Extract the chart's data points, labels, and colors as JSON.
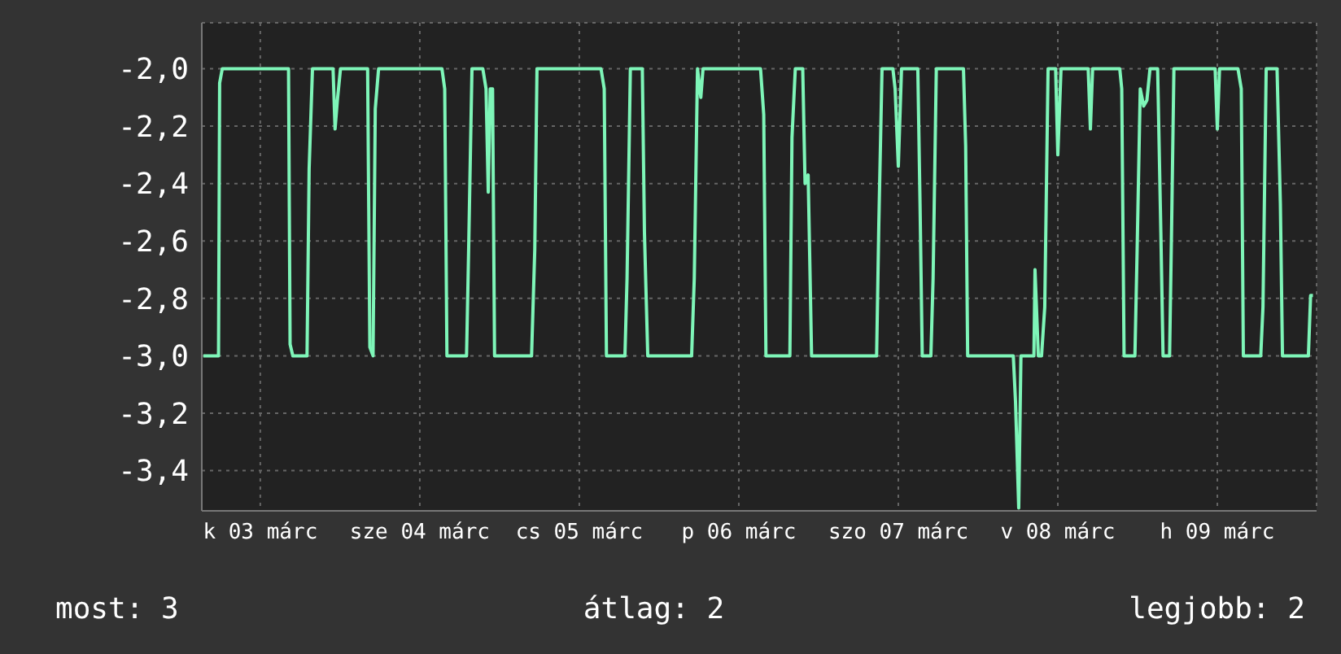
{
  "chart_data": {
    "type": "line",
    "x": [
      "--03-03T03:26",
      "--03-03T05:43",
      "--03-03T05:53",
      "--03-03T06:17",
      "--03-03T16:15",
      "--03-03T16:29",
      "--03-03T16:54",
      "--03-03T19:02",
      "--03-03T19:21",
      "--03-03T19:51",
      "--03-03T22:57",
      "--03-03T23:15",
      "--03-03T23:36",
      "--03-04T00:04",
      "--03-04T04:09",
      "--03-04T04:29",
      "--03-04T04:58",
      "--03-04T05:18",
      "--03-04T05:48",
      "--03-04T15:20",
      "--03-04T15:45",
      "--03-04T16:05",
      "--03-04T19:02",
      "--03-04T19:21",
      "--03-04T19:51",
      "--03-04T21:29",
      "--03-04T21:58",
      "--03-04T22:18",
      "--03-04T22:36",
      "--03-04T22:57",
      "--03-04T23:15",
      "--03-05T04:49",
      "--03-05T05:18",
      "--03-05T05:38",
      "--03-05T15:16",
      "--03-05T15:45",
      "--03-05T16:05",
      "--03-05T18:52",
      "--03-05T19:11",
      "--03-05T19:41",
      "--03-05T21:29",
      "--03-05T21:48",
      "--03-05T22:18",
      "--03-06T04:54",
      "--03-06T05:18",
      "--03-06T05:47",
      "--03-06T06:17",
      "--03-06T06:37",
      "--03-06T15:16",
      "--03-06T15:45",
      "--03-06T16:05",
      "--03-06T19:41",
      "--03-06T20:00",
      "--03-06T20:30",
      "--03-06T21:37",
      "--03-06T21:58",
      "--03-06T22:26",
      "--03-06T22:57",
      "--03-07T08:44",
      "--03-07T09:04",
      "--03-07T09:33",
      "--03-07T11:11",
      "--03-07T11:31",
      "--03-07T12:00",
      "--03-07T12:29",
      "--03-07T14:56",
      "--03-07T15:16",
      "--03-07T15:36",
      "--03-07T16:54",
      "--03-07T17:14",
      "--03-07T17:43",
      "--03-07T21:48",
      "--03-07T22:08",
      "--03-07T22:26",
      "--03-08T05:18",
      "--03-08T05:38",
      "--03-08T06:07",
      "--03-08T06:27",
      "--03-08T08:24",
      "--03-08T08:34",
      "--03-08T09:04",
      "--03-08T09:33",
      "--03-08T10:02",
      "--03-08T10:32",
      "--03-08T11:40",
      "--03-08T12:00",
      "--03-08T12:29",
      "--03-08T16:34",
      "--03-08T16:54",
      "--03-08T17:14",
      "--03-08T21:19",
      "--03-08T21:37",
      "--03-08T21:58",
      "--03-08T23:36",
      "--03-08T23:56",
      "--03-09T00:24",
      "--03-09T00:55",
      "--03-09T01:24",
      "--03-09T01:52",
      "--03-09T03:01",
      "--03-09T03:30",
      "--03-09T03:50",
      "--03-09T04:49",
      "--03-09T05:08",
      "--03-09T05:28",
      "--03-09T11:40",
      "--03-09T12:00",
      "--03-09T12:20",
      "--03-09T15:06",
      "--03-09T15:36",
      "--03-09T15:55",
      "--03-09T18:32",
      "--03-09T18:52",
      "--03-09T19:21",
      "--03-09T20:59",
      "--03-09T21:29",
      "--03-09T21:48",
      "--03-10T01:42",
      "--03-10T02:02",
      "--03-10T02:23"
    ],
    "series": [
      {
        "color": "#7ef5b8",
        "values": [
          -3.0,
          -3.0,
          -2.05,
          -2.0,
          -2.0,
          -2.96,
          -3.0,
          -3.0,
          -2.35,
          -2.0,
          -2.0,
          -2.21,
          -2.11,
          -2.0,
          -2.0,
          -2.97,
          -3.0,
          -2.14,
          -2.0,
          -2.0,
          -2.07,
          -3.0,
          -3.0,
          -2.63,
          -2.0,
          -2.0,
          -2.07,
          -2.43,
          -2.07,
          -2.07,
          -3.0,
          -3.0,
          -2.63,
          -2.0,
          -2.0,
          -2.07,
          -3.0,
          -3.0,
          -2.73,
          -2.0,
          -2.0,
          -2.57,
          -3.0,
          -3.0,
          -2.73,
          -2.0,
          -2.1,
          -2.0,
          -2.0,
          -2.16,
          -3.0,
          -3.0,
          -2.24,
          -2.0,
          -2.0,
          -2.4,
          -2.37,
          -3.0,
          -3.0,
          -2.54,
          -2.0,
          -2.0,
          -2.07,
          -2.34,
          -2.0,
          -2.0,
          -2.47,
          -3.0,
          -3.0,
          -2.73,
          -2.0,
          -2.0,
          -2.27,
          -3.0,
          -3.0,
          -3.16,
          -3.53,
          -3.0,
          -3.0,
          -2.7,
          -3.0,
          -3.0,
          -2.83,
          -2.0,
          -2.0,
          -2.3,
          -2.0,
          -2.0,
          -2.21,
          -2.0,
          -2.0,
          -2.07,
          -3.0,
          -3.0,
          -2.63,
          -2.07,
          -2.13,
          -2.11,
          -2.0,
          -2.0,
          -2.57,
          -3.0,
          -3.0,
          -2.53,
          -2.0,
          -2.0,
          -2.21,
          -2.0,
          -2.0,
          -2.07,
          -3.0,
          -3.0,
          -2.83,
          -2.0,
          -2.0,
          -2.47,
          -3.0,
          -3.0,
          -2.79,
          -2.79
        ]
      }
    ],
    "xlim": [
      "--03-03T03:12",
      "--03-10T02:56"
    ],
    "xticks": [
      {
        "value": "--03-03T12:00",
        "label": "k 03 márc"
      },
      {
        "value": "--03-04T12:00",
        "label": "sze 04 márc"
      },
      {
        "value": "--03-05T12:00",
        "label": "cs 05 márc"
      },
      {
        "value": "--03-06T12:00",
        "label": "p 06 márc"
      },
      {
        "value": "--03-07T12:00",
        "label": "szo 07 márc"
      },
      {
        "value": "--03-08T12:00",
        "label": "v 08 márc"
      },
      {
        "value": "--03-09T12:00",
        "label": "h 09 márc"
      }
    ],
    "ylim": [
      -3.54,
      -1.84
    ],
    "yticks": [
      {
        "value": -2.0,
        "label": "-2,0"
      },
      {
        "value": -2.2,
        "label": "-2,2"
      },
      {
        "value": -2.4,
        "label": "-2,4"
      },
      {
        "value": -2.6,
        "label": "-2,6"
      },
      {
        "value": -2.8,
        "label": "-2,8"
      },
      {
        "value": -3.0,
        "label": "-3,0"
      },
      {
        "value": -3.2,
        "label": "-3,2"
      },
      {
        "value": -3.4,
        "label": "-3,4"
      }
    ],
    "grid": true,
    "annotations": [
      "most: 3",
      "átlag: 2",
      "legjobb: 2"
    ]
  }
}
